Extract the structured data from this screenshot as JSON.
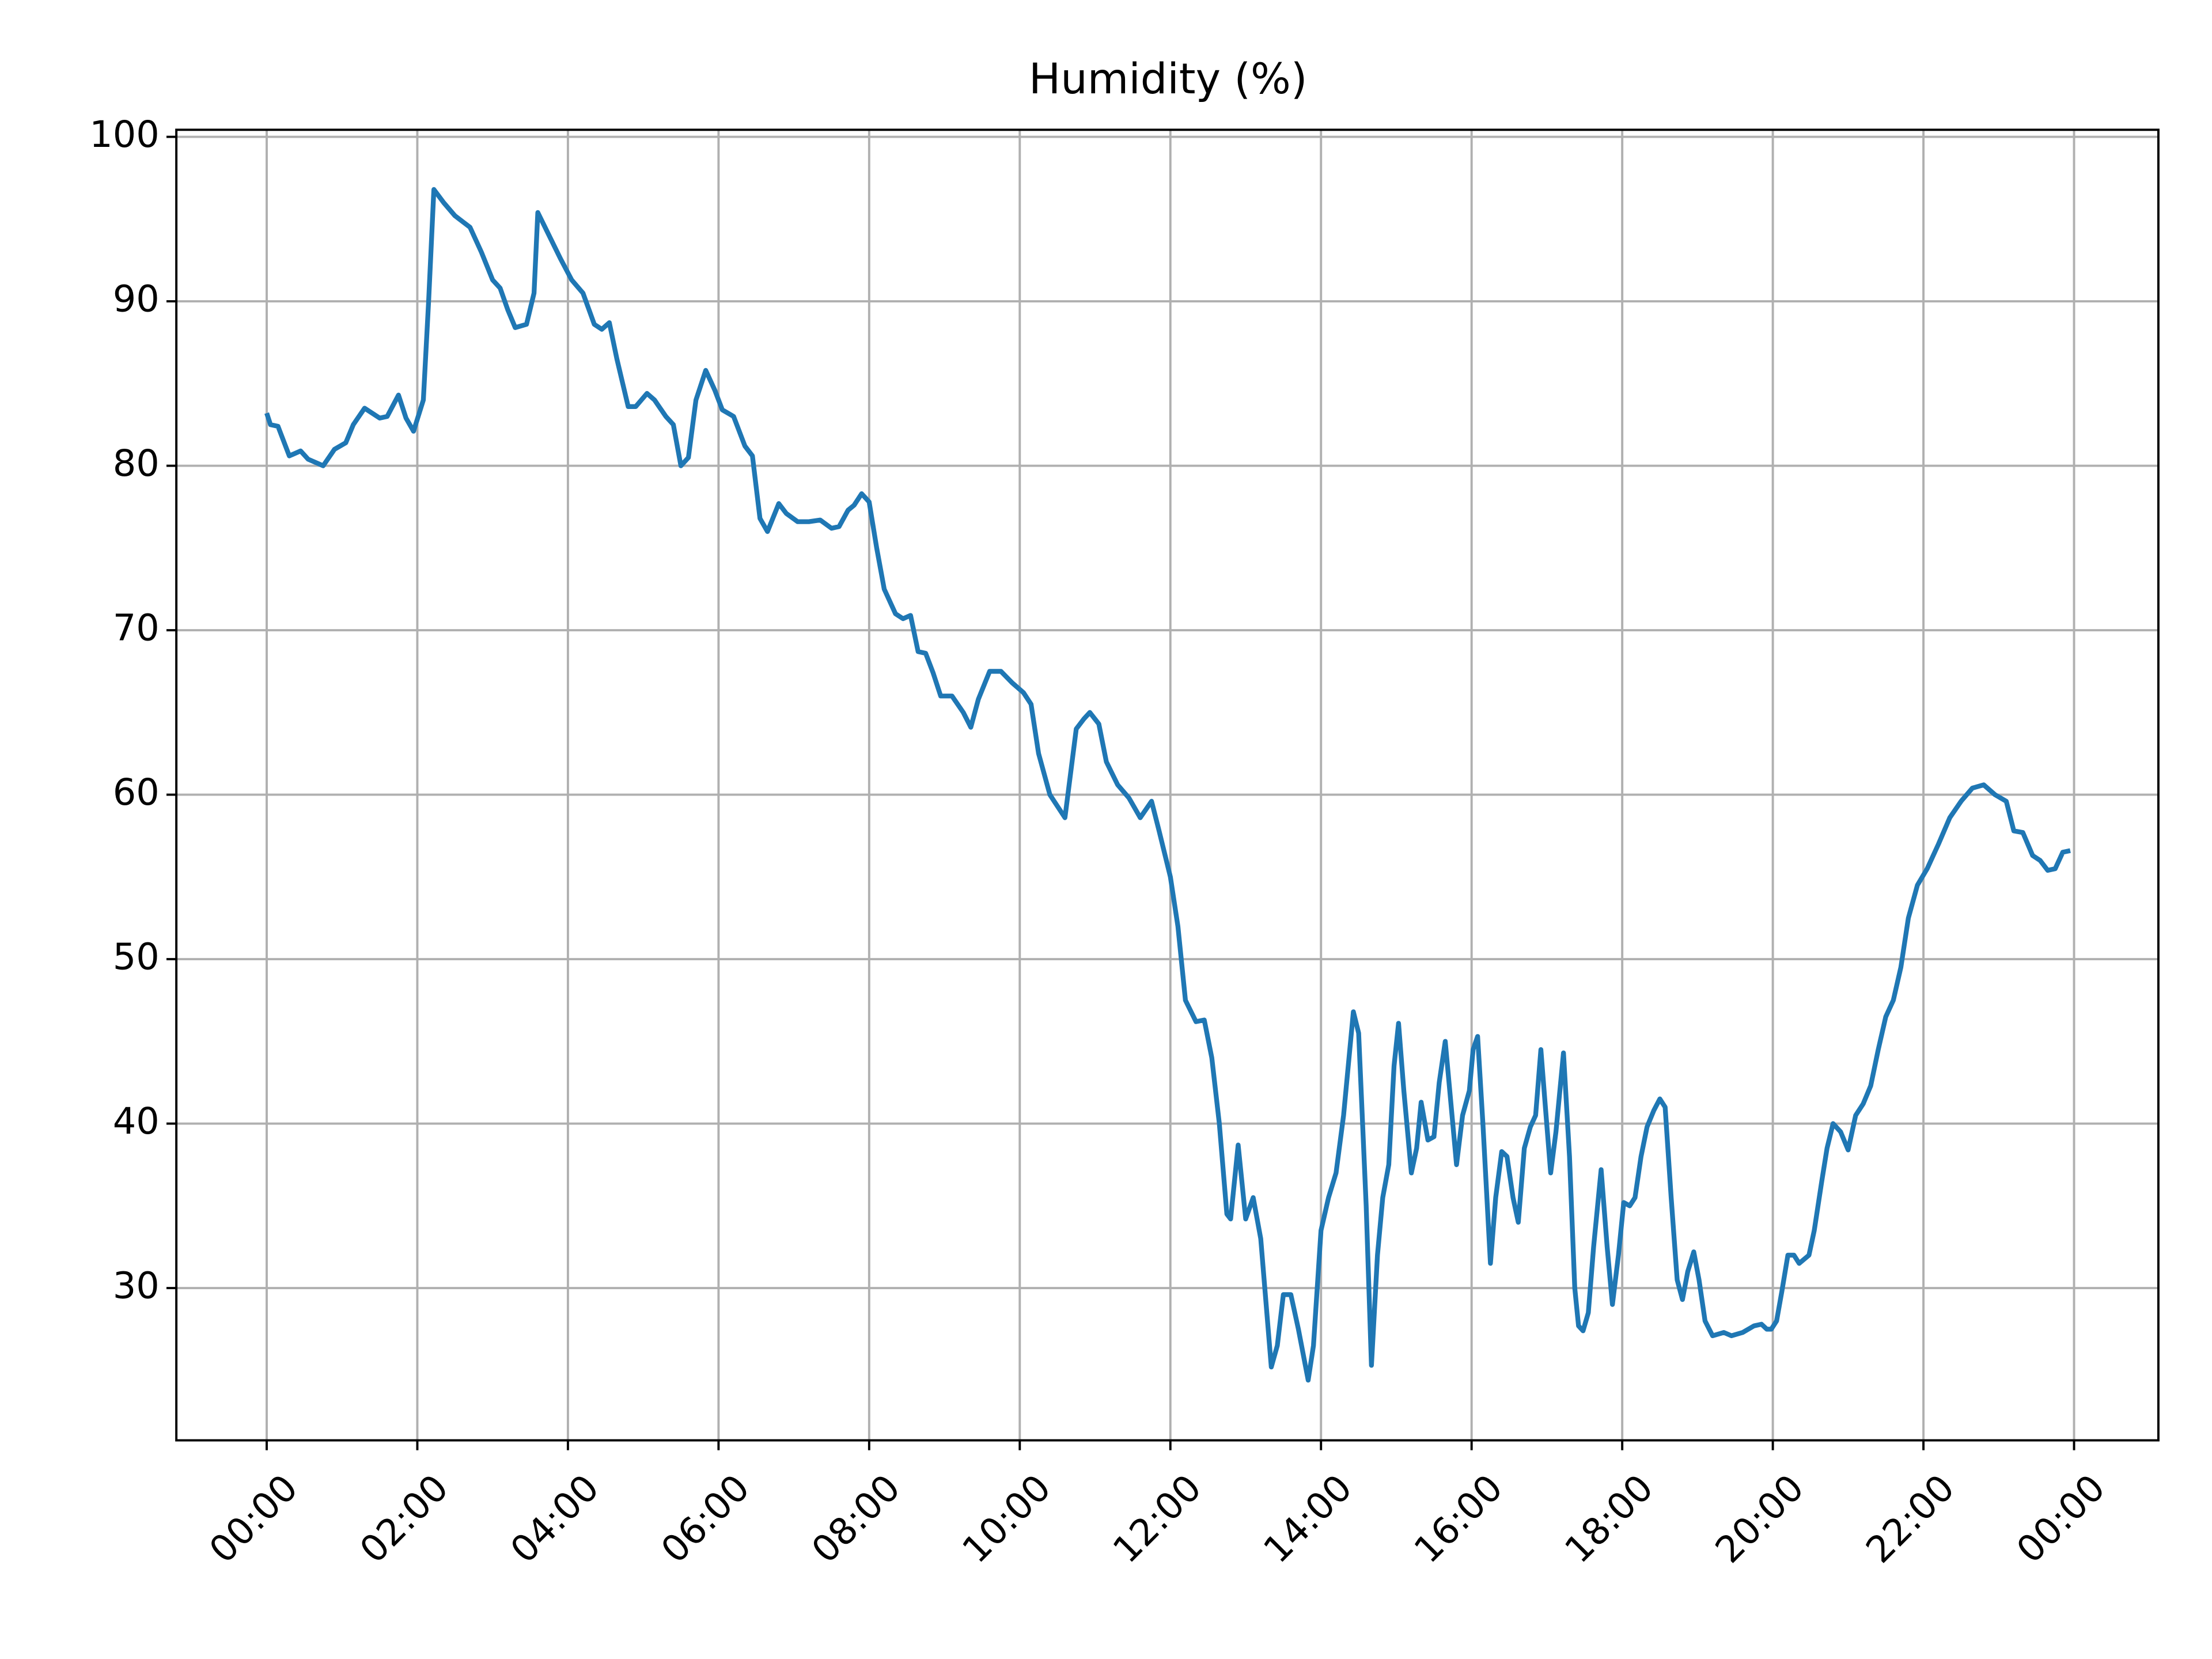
{
  "chart_data": {
    "type": "line",
    "title": "Humidity (%)",
    "x": [
      0.0,
      0.05,
      0.15,
      0.3,
      0.45,
      0.55,
      0.75,
      0.9,
      1.05,
      1.15,
      1.3,
      1.5,
      1.6,
      1.75,
      1.85,
      1.95,
      2.08,
      2.15,
      2.22,
      2.35,
      2.5,
      2.7,
      2.85,
      3.0,
      3.1,
      3.2,
      3.3,
      3.45,
      3.55,
      3.6,
      3.75,
      3.9,
      4.05,
      4.2,
      4.35,
      4.45,
      4.55,
      4.65,
      4.8,
      4.9,
      5.05,
      5.15,
      5.3,
      5.4,
      5.5,
      5.6,
      5.7,
      5.83,
      5.95,
      6.05,
      6.2,
      6.35,
      6.45,
      6.55,
      6.65,
      6.8,
      6.9,
      7.05,
      7.2,
      7.35,
      7.5,
      7.6,
      7.72,
      7.8,
      7.9,
      8.0,
      8.1,
      8.2,
      8.35,
      8.45,
      8.55,
      8.65,
      8.75,
      8.85,
      8.95,
      9.1,
      9.25,
      9.35,
      9.45,
      9.6,
      9.75,
      9.9,
      10.05,
      10.15,
      10.25,
      10.4,
      10.6,
      10.75,
      10.85,
      10.93,
      11.05,
      11.15,
      11.3,
      11.45,
      11.6,
      11.75,
      11.85,
      12.0,
      12.1,
      12.2,
      12.34,
      12.45,
      12.55,
      12.65,
      12.75,
      12.8,
      12.9,
      13.0,
      13.1,
      13.2,
      13.34,
      13.42,
      13.5,
      13.6,
      13.7,
      13.83,
      13.9,
      14.0,
      14.1,
      14.2,
      14.3,
      14.43,
      14.5,
      14.6,
      14.67,
      14.75,
      14.82,
      14.9,
      14.97,
      15.03,
      15.1,
      15.2,
      15.27,
      15.33,
      15.42,
      15.5,
      15.57,
      15.65,
      15.72,
      15.8,
      15.88,
      15.97,
      16.02,
      16.08,
      16.15,
      16.25,
      16.32,
      16.4,
      16.47,
      16.55,
      16.62,
      16.7,
      16.78,
      16.85,
      16.92,
      16.98,
      17.05,
      17.12,
      17.22,
      17.3,
      17.37,
      17.42,
      17.48,
      17.55,
      17.62,
      17.72,
      17.8,
      17.87,
      17.95,
      18.02,
      18.1,
      18.17,
      18.25,
      18.33,
      18.42,
      18.5,
      18.57,
      18.65,
      18.73,
      18.8,
      18.87,
      18.95,
      19.02,
      19.1,
      19.2,
      19.35,
      19.45,
      19.6,
      19.75,
      19.85,
      19.92,
      19.98,
      20.05,
      20.12,
      20.2,
      20.28,
      20.35,
      20.48,
      20.55,
      20.65,
      20.72,
      20.8,
      20.9,
      21.0,
      21.1,
      21.2,
      21.3,
      21.4,
      21.5,
      21.6,
      21.7,
      21.8,
      21.92,
      22.05,
      22.2,
      22.35,
      22.5,
      22.65,
      22.8,
      22.95,
      23.1,
      23.2,
      23.32,
      23.45,
      23.55,
      23.65,
      23.75,
      23.85,
      23.95
    ],
    "series": [
      {
        "name": "Humidity",
        "color": "#1f77b4",
        "values": [
          83.2,
          82.5,
          82.4,
          80.6,
          80.9,
          80.4,
          80.0,
          81.0,
          81.4,
          82.5,
          83.5,
          82.9,
          83.0,
          84.3,
          82.9,
          82.1,
          84.0,
          90.0,
          96.8,
          96.0,
          95.2,
          94.5,
          93.0,
          91.3,
          90.8,
          89.5,
          88.4,
          88.6,
          90.5,
          95.4,
          94.0,
          92.6,
          91.3,
          90.5,
          88.6,
          88.3,
          88.7,
          86.5,
          83.6,
          83.6,
          84.4,
          84.0,
          83.0,
          82.5,
          80.0,
          80.5,
          84.0,
          85.8,
          84.6,
          83.4,
          83.0,
          81.2,
          80.6,
          76.8,
          76.0,
          77.7,
          77.1,
          76.6,
          76.6,
          76.7,
          76.2,
          76.3,
          77.3,
          77.6,
          78.3,
          77.8,
          75.0,
          72.5,
          71.0,
          70.7,
          70.9,
          68.7,
          68.6,
          67.4,
          66.0,
          66.0,
          65.0,
          64.1,
          65.8,
          67.5,
          67.5,
          66.8,
          66.2,
          65.5,
          62.5,
          60.0,
          58.6,
          64.0,
          64.6,
          65.0,
          64.3,
          62.0,
          60.6,
          59.8,
          58.6,
          59.6,
          57.8,
          55.0,
          52.0,
          47.5,
          46.2,
          46.3,
          44.0,
          40.0,
          34.5,
          34.2,
          38.7,
          34.2,
          35.5,
          33.0,
          25.2,
          26.5,
          29.6,
          29.6,
          27.5,
          24.4,
          26.5,
          33.5,
          35.5,
          37.0,
          40.5,
          46.8,
          45.5,
          35.0,
          25.3,
          32.0,
          35.5,
          37.5,
          43.5,
          46.1,
          42.0,
          37.0,
          38.5,
          41.3,
          39.0,
          39.2,
          42.5,
          45.0,
          41.5,
          37.5,
          40.5,
          42.0,
          44.5,
          45.3,
          40.0,
          31.5,
          35.5,
          38.3,
          38.0,
          35.5,
          34.0,
          38.5,
          39.8,
          40.5,
          44.5,
          41.0,
          37.0,
          39.5,
          44.3,
          38.0,
          30.0,
          27.7,
          27.4,
          28.5,
          32.5,
          37.2,
          32.5,
          29.0,
          32.0,
          35.2,
          35.0,
          35.5,
          38.0,
          39.8,
          40.8,
          41.5,
          41.0,
          35.5,
          30.5,
          29.3,
          31.0,
          32.2,
          30.5,
          28.0,
          27.1,
          27.3,
          27.1,
          27.3,
          27.7,
          27.8,
          27.5,
          27.5,
          28.0,
          29.8,
          32.0,
          32.0,
          31.5,
          32.0,
          33.5,
          36.5,
          38.5,
          40.0,
          39.5,
          38.4,
          40.5,
          41.2,
          42.3,
          44.5,
          46.5,
          47.5,
          49.5,
          52.5,
          54.5,
          55.5,
          57.0,
          58.6,
          59.6,
          60.4,
          60.6,
          60.0,
          59.6,
          57.8,
          57.7,
          56.3,
          56.0,
          55.4,
          55.5,
          56.5,
          56.6
        ]
      }
    ],
    "xlim": [
      -1.2,
      25.12
    ],
    "xticks": [
      {
        "value": 0,
        "label": "00:00"
      },
      {
        "value": 2,
        "label": "02:00"
      },
      {
        "value": 4,
        "label": "04:00"
      },
      {
        "value": 6,
        "label": "06:00"
      },
      {
        "value": 8,
        "label": "08:00"
      },
      {
        "value": 10,
        "label": "10:00"
      },
      {
        "value": 12,
        "label": "12:00"
      },
      {
        "value": 14,
        "label": "14:00"
      },
      {
        "value": 16,
        "label": "16:00"
      },
      {
        "value": 18,
        "label": "18:00"
      },
      {
        "value": 20,
        "label": "20:00"
      },
      {
        "value": 22,
        "label": "22:00"
      },
      {
        "value": 24,
        "label": "00:00"
      }
    ],
    "ylim": [
      20.74,
      100.43
    ],
    "yticks": [
      30,
      40,
      50,
      60,
      70,
      80,
      90,
      100
    ],
    "grid": true
  }
}
